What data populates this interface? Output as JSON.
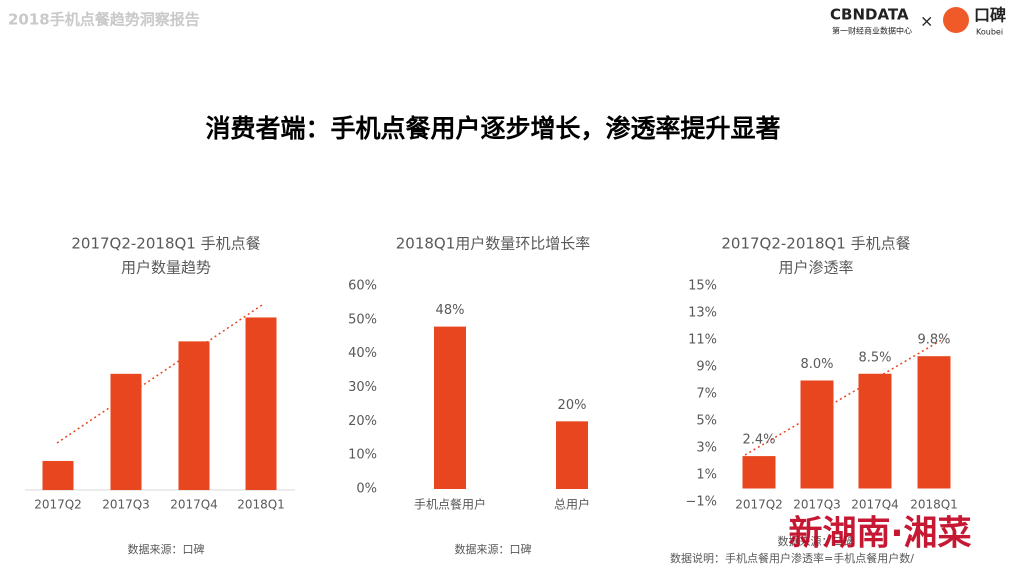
{
  "header": {
    "report": "2018手机点餐趋势洞察报告",
    "logo1": "CBNDATA",
    "logo1_sub": "第一财经商业数据中心",
    "times": "×",
    "logo2": "口碑",
    "logo2_sub": "Koubei"
  },
  "title": "消费者端：手机点餐用户逐步增长，渗透率提升显著",
  "chart_data": [
    {
      "type": "bar",
      "title": [
        "2017Q2-2018Q1 手机点餐",
        "用户数量趋势"
      ],
      "categories": [
        "2017Q2",
        "2017Q3",
        "2017Q4",
        "2018Q1"
      ],
      "values": [
        1.7,
        6.8,
        8.7,
        10.1
      ],
      "color": "#e8461e",
      "ylim": [
        0,
        12
      ],
      "source": "数据来源：口碑"
    },
    {
      "type": "bar",
      "title": [
        "2018Q1用户数量环比增长率"
      ],
      "categories": [
        "手机点餐用户",
        "总用户"
      ],
      "values": [
        48,
        20
      ],
      "value_labels": [
        "48%",
        "20%"
      ],
      "color": "#e8461e",
      "ylim": [
        0,
        60
      ],
      "yticks": [
        {
          "value": 0,
          "label": "0%"
        },
        {
          "value": 10,
          "label": "10%"
        },
        {
          "value": 20,
          "label": "20%"
        },
        {
          "value": 30,
          "label": "30%"
        },
        {
          "value": 40,
          "label": "40%"
        },
        {
          "value": 50,
          "label": "50%"
        },
        {
          "value": 60,
          "label": "60%"
        }
      ],
      "source": "数据来源：口碑"
    },
    {
      "type": "bar",
      "title": [
        "2017Q2-2018Q1 手机点餐",
        "用户渗透率"
      ],
      "categories": [
        "2017Q2",
        "2017Q3",
        "2017Q4",
        "2018Q1"
      ],
      "values": [
        2.4,
        8.0,
        8.5,
        9.8
      ],
      "value_labels": [
        "2.4%",
        "8.0%",
        "8.5%",
        "9.8%"
      ],
      "color": "#e8461e",
      "ylim": [
        -1,
        15
      ],
      "yticks": [
        {
          "value": -1,
          "label": "−1%"
        },
        {
          "value": 1,
          "label": "1%"
        },
        {
          "value": 3,
          "label": "3%"
        },
        {
          "value": 5,
          "label": "5%"
        },
        {
          "value": 7,
          "label": "7%"
        },
        {
          "value": 9,
          "label": "9%"
        },
        {
          "value": 11,
          "label": "11%"
        },
        {
          "value": 13,
          "label": "13%"
        },
        {
          "value": 15,
          "label": "15%"
        }
      ],
      "source": "数据来源：口碑",
      "note": "数据说明：手机点餐用户渗透率=手机点餐用户数/"
    }
  ],
  "watermark": "新湖南·湘菜"
}
